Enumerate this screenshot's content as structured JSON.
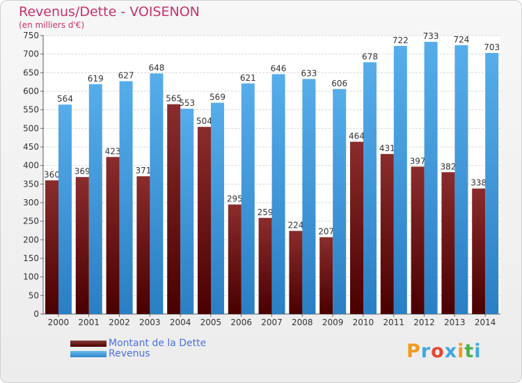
{
  "chart_data": {
    "type": "bar",
    "title": "Revenus/Dette - VOISENON",
    "subtitle": "(en milliers d'€)",
    "categories": [
      "2000",
      "2001",
      "2002",
      "2003",
      "2004",
      "2005",
      "2006",
      "2007",
      "2008",
      "2009",
      "2010",
      "2011",
      "2012",
      "2013",
      "2014"
    ],
    "series": [
      {
        "name": "Montant de la Dette",
        "values": [
          360,
          369,
          423,
          371,
          565,
          504,
          295,
          259,
          224,
          207,
          464,
          431,
          397,
          382,
          338
        ],
        "color": "#7a1a1a"
      },
      {
        "name": "Revenus",
        "values": [
          564,
          619,
          627,
          648,
          553,
          569,
          621,
          646,
          633,
          606,
          678,
          722,
          733,
          724,
          703
        ],
        "color": "#4aa3e6"
      }
    ],
    "ylim": [
      0,
      750
    ],
    "ytick_step": 50,
    "grid": true,
    "legend_position": "bottom-left"
  },
  "logo": {
    "text": "Proxiti",
    "colors": [
      "#f29a1f",
      "#3fa7e0",
      "#e8462e",
      "#3fa7e0",
      "#f29a1f",
      "#4cb04c",
      "#3fa7e0"
    ]
  }
}
